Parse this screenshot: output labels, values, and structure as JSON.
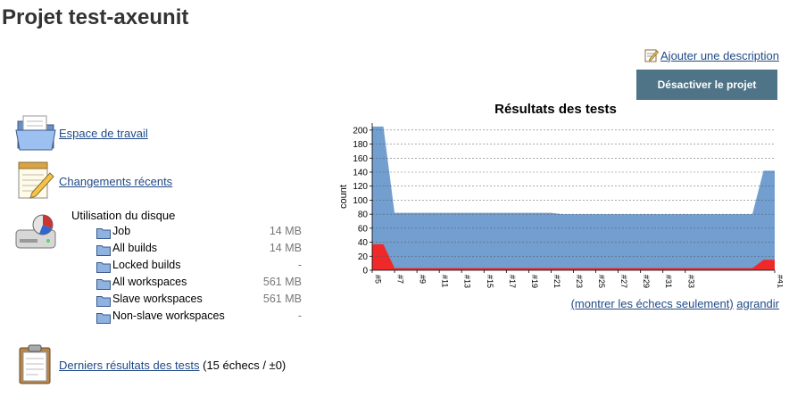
{
  "page": {
    "title": "Projet test-axeunit"
  },
  "actions": {
    "add_description": "Ajouter une description",
    "disable_project": "Désactiver le projet"
  },
  "tasks": {
    "workspace": "Espace de travail",
    "recent_changes": "Changements récents"
  },
  "disk": {
    "title": "Utilisation du disque",
    "rows": [
      {
        "name": "Job",
        "size": "14 MB"
      },
      {
        "name": "All builds",
        "size": "14 MB"
      },
      {
        "name": "Locked builds",
        "size": "-"
      },
      {
        "name": "All workspaces",
        "size": "561 MB"
      },
      {
        "name": "Slave workspaces",
        "size": "561 MB"
      },
      {
        "name": "Non-slave workspaces",
        "size": "-"
      }
    ]
  },
  "last_results": {
    "link": "Derniers résultats des tests",
    "summary": " (15 échecs / ±0)"
  },
  "chart_links": {
    "failures_only": "(montrer les échecs seulement)",
    "enlarge": "agrandir"
  },
  "colors": {
    "total_area": "#729fcf",
    "failed_area": "#ef2929",
    "button": "#4f7387",
    "link": "#204a87"
  },
  "chart_data": {
    "type": "area",
    "title": "Résultats des tests",
    "ylabel": "count",
    "xlabel": "",
    "ylim": [
      0,
      210
    ],
    "yticks": [
      0,
      20,
      40,
      60,
      80,
      100,
      120,
      140,
      160,
      180,
      200
    ],
    "grid": true,
    "builds": [
      "#5",
      "#6",
      "#7",
      "#8",
      "#9",
      "#10",
      "#11",
      "#12",
      "#13",
      "#14",
      "#15",
      "#16",
      "#17",
      "#18",
      "#19",
      "#20",
      "#21",
      "#22",
      "#23",
      "#24",
      "#25",
      "#26",
      "#27",
      "#28",
      "#29",
      "#30",
      "#31",
      "#32",
      "#33",
      "#34",
      "#35",
      "#36",
      "#37",
      "#38",
      "#39",
      "#40",
      "#41"
    ],
    "xtick_labels": [
      "#5",
      "#7",
      "#9",
      "#11",
      "#13",
      "#15",
      "#17",
      "#19",
      "#21",
      "#23",
      "#25",
      "#27",
      "#29",
      "#31",
      "#33",
      "#41"
    ],
    "series": [
      {
        "name": "total",
        "values": [
          205,
          205,
          82,
          82,
          82,
          82,
          82,
          82,
          82,
          82,
          82,
          82,
          82,
          82,
          82,
          82,
          82,
          80,
          80,
          80,
          80,
          80,
          80,
          80,
          80,
          80,
          80,
          80,
          80,
          80,
          80,
          80,
          80,
          80,
          80,
          142,
          142
        ]
      },
      {
        "name": "failed",
        "values": [
          37,
          37,
          3,
          3,
          3,
          3,
          3,
          3,
          3,
          3,
          3,
          3,
          3,
          3,
          3,
          3,
          3,
          3,
          3,
          3,
          3,
          3,
          3,
          3,
          3,
          3,
          3,
          3,
          3,
          3,
          3,
          3,
          3,
          3,
          3,
          15,
          15
        ]
      }
    ]
  }
}
